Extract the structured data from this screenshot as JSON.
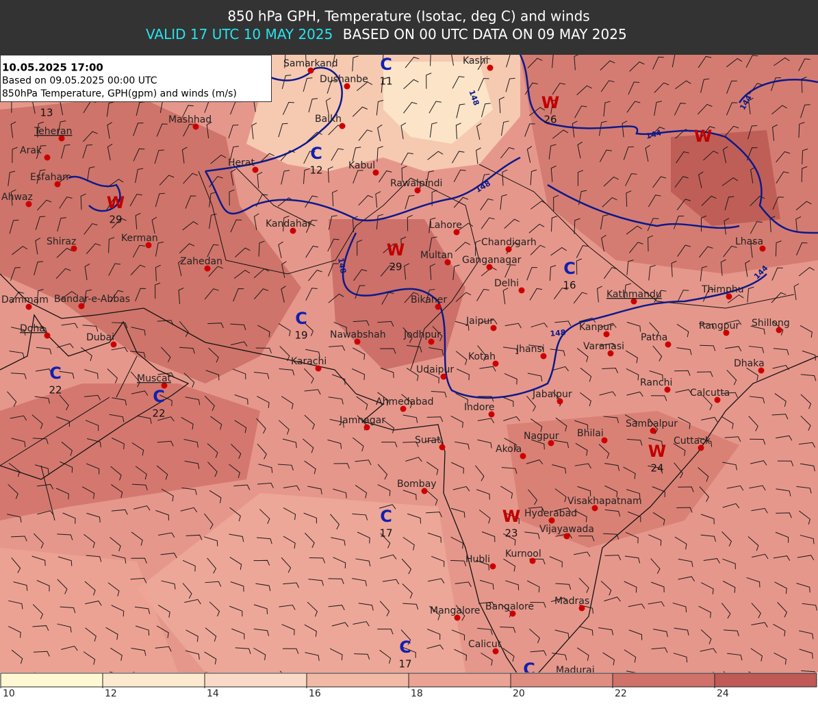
{
  "header": {
    "title": "850 hPa GPH, Temperature (Isotac, deg C) and winds",
    "valid": "VALID 17 UTC 10 MAY 2025",
    "based": "BASED ON 00 UTC DATA ON 09 MAY 2025"
  },
  "info_box": {
    "datetime": "10.05.2025 17:00",
    "based_on": "Based on 09.05.2025 00:00 UTC",
    "description": "850hPa Temperature, GPH(gpm) and winds (m/s)"
  },
  "cities": [
    "Samarkand",
    "Kashi",
    "Dushanbe",
    "Balkh",
    "Mashhad",
    "Teheran",
    "Arak",
    "Herat",
    "Kabul",
    "Esfahan",
    "Rawalpindi",
    "Ahwaz",
    "Kandahar",
    "Lahore",
    "Shiraz",
    "Kerman",
    "Chandigarh",
    "Multan",
    "Ganganagar",
    "Lhasa",
    "Zahedan",
    "Delhi",
    "Kathmandu",
    "Thimphu",
    "Dammam",
    "Bandar-e-Abbas",
    "Bikaner",
    "Jaipur",
    "Kanpur",
    "Rangpur",
    "Shillong",
    "Doha",
    "Dubai",
    "Nawabshah",
    "Jodhpur",
    "Patna",
    "Jhansi",
    "Varanasi",
    "Kotah",
    "Karachi",
    "Dhaka",
    "Udaipur",
    "Muscat",
    "Ranchi",
    "Calcutta",
    "Jabalpur",
    "Ahmedabad",
    "Indore",
    "Jamnagar",
    "Sambalpur",
    "Nagpur",
    "Bhilai",
    "Surat",
    "Cuttack",
    "Akola",
    "Bombay",
    "Visakhapatnam",
    "Hyderabad",
    "Vijayawada",
    "Kurnool",
    "Hubli",
    "Madras",
    "Bangalore",
    "Mangalore",
    "Calicut",
    "Madurai"
  ],
  "pressure_centers": [
    {
      "letter": "C",
      "value": 11
    },
    {
      "letter": "W",
      "value": 26
    },
    {
      "letter": "C",
      "value": 12
    },
    {
      "letter": "W",
      "value": 29
    },
    {
      "letter": "W",
      "value": 29
    },
    {
      "letter": "C",
      "value": 16
    },
    {
      "letter": "C",
      "value": 19
    },
    {
      "letter": "C",
      "value": 22
    },
    {
      "letter": "C",
      "value": 22
    },
    {
      "letter": "W",
      "value": 24
    },
    {
      "letter": "C",
      "value": 17
    },
    {
      "letter": "W",
      "value": 23
    },
    {
      "letter": "C",
      "value": 17
    }
  ],
  "partial_centers": [
    "W",
    "C"
  ],
  "isolated_values": [
    13
  ],
  "contour_labels": [
    144,
    144,
    148,
    148,
    148,
    148,
    144
  ],
  "colorbar": {
    "ticks": [
      10,
      12,
      14,
      16,
      18,
      20,
      22,
      24
    ],
    "colors": [
      "#fff8d2",
      "#fbead0",
      "#f8dac6",
      "#f2b9a6",
      "#eaa394",
      "#df8d81",
      "#d0716a",
      "#bf5a57"
    ]
  }
}
